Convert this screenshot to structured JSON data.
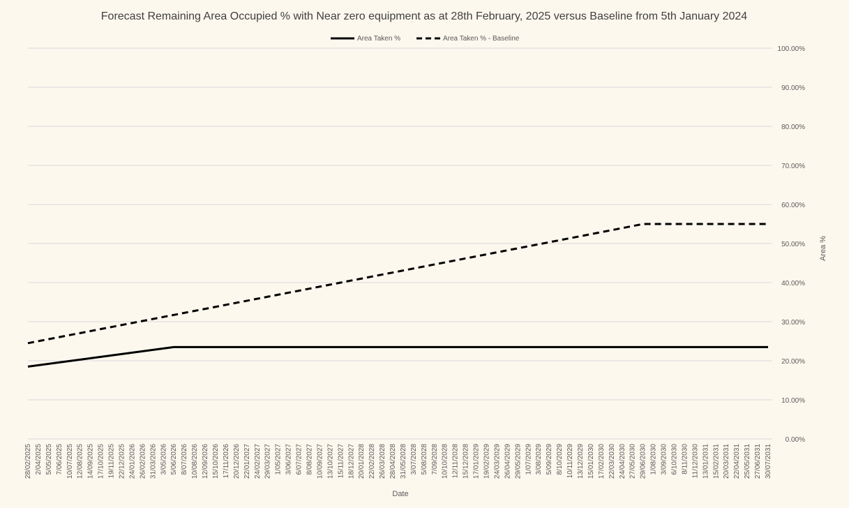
{
  "chart_data": {
    "type": "line",
    "title": "Forecast Remaining Area Occupied % with Near zero equipment as at 28th February, 2025 versus Baseline from 5th January 2024",
    "xlabel": "Date",
    "ylabel": "Area %",
    "ylim": [
      0,
      100
    ],
    "y_ticks": [
      "0.00%",
      "10.00%",
      "20.00%",
      "30.00%",
      "40.00%",
      "50.00%",
      "60.00%",
      "70.00%",
      "80.00%",
      "90.00%",
      "100.00%"
    ],
    "y_axis_position": "right",
    "grid": true,
    "legend_position": "top",
    "x": [
      "28/02/2025",
      "2/04/2025",
      "5/05/2025",
      "7/06/2025",
      "10/07/2025",
      "12/08/2025",
      "14/09/2025",
      "17/10/2025",
      "19/11/2025",
      "22/12/2025",
      "24/01/2026",
      "26/02/2026",
      "31/03/2026",
      "3/05/2026",
      "5/06/2026",
      "8/07/2026",
      "10/08/2026",
      "12/09/2026",
      "15/10/2026",
      "17/11/2026",
      "20/12/2026",
      "22/01/2027",
      "24/02/2027",
      "29/03/2027",
      "1/05/2027",
      "3/06/2027",
      "6/07/2027",
      "8/08/2027",
      "10/09/2027",
      "13/10/2027",
      "15/11/2027",
      "18/12/2027",
      "20/01/2028",
      "22/02/2028",
      "26/03/2028",
      "28/04/2028",
      "31/05/2028",
      "3/07/2028",
      "5/08/2028",
      "7/09/2028",
      "10/10/2028",
      "12/11/2028",
      "15/12/2028",
      "17/01/2029",
      "19/02/2029",
      "24/03/2029",
      "26/04/2029",
      "29/05/2029",
      "1/07/2029",
      "3/08/2029",
      "5/09/2029",
      "8/10/2029",
      "10/11/2029",
      "13/12/2029",
      "15/01/2030",
      "17/02/2030",
      "22/03/2030",
      "24/04/2030",
      "27/05/2030",
      "29/06/2030",
      "1/08/2030",
      "3/09/2030",
      "6/10/2030",
      "8/11/2030",
      "11/12/2030",
      "13/01/2031",
      "15/02/2031",
      "20/03/2031",
      "22/04/2031",
      "25/05/2031",
      "27/06/2031",
      "30/07/2031"
    ],
    "series": [
      {
        "name": "Area Taken %",
        "style": "solid",
        "color": "#000000",
        "values": [
          18.5,
          18.86,
          19.21,
          19.57,
          19.93,
          20.29,
          20.64,
          21.0,
          21.36,
          21.71,
          22.07,
          22.43,
          22.79,
          23.14,
          23.5,
          23.5,
          23.5,
          23.5,
          23.5,
          23.5,
          23.5,
          23.5,
          23.5,
          23.5,
          23.5,
          23.5,
          23.5,
          23.5,
          23.5,
          23.5,
          23.5,
          23.5,
          23.5,
          23.5,
          23.5,
          23.5,
          23.5,
          23.5,
          23.5,
          23.5,
          23.5,
          23.5,
          23.5,
          23.5,
          23.5,
          23.5,
          23.5,
          23.5,
          23.5,
          23.5,
          23.5,
          23.5,
          23.5,
          23.5,
          23.5,
          23.5,
          23.5,
          23.5,
          23.5,
          23.5,
          23.5,
          23.5,
          23.5,
          23.5,
          23.5,
          23.5,
          23.5,
          23.5,
          23.5,
          23.5,
          23.5,
          23.5
        ]
      },
      {
        "name": "Area Taken % - Baseline",
        "style": "dashed",
        "color": "#000000",
        "values": [
          24.5,
          25.02,
          25.53,
          26.05,
          26.57,
          27.08,
          27.6,
          28.12,
          28.63,
          29.15,
          29.67,
          30.18,
          30.7,
          31.22,
          31.73,
          32.25,
          32.77,
          33.28,
          33.8,
          34.32,
          34.83,
          35.35,
          35.87,
          36.38,
          36.9,
          37.42,
          37.93,
          38.45,
          38.97,
          39.48,
          40.0,
          40.52,
          41.03,
          41.55,
          42.07,
          42.58,
          43.1,
          43.62,
          44.13,
          44.65,
          45.17,
          45.68,
          46.2,
          46.72,
          47.23,
          47.75,
          48.27,
          48.78,
          49.3,
          49.82,
          50.33,
          50.85,
          51.37,
          51.88,
          52.4,
          52.92,
          53.43,
          53.95,
          54.47,
          55.0,
          55.0,
          55.0,
          55.0,
          55.0,
          55.0,
          55.0,
          55.0,
          55.0,
          55.0,
          55.0,
          55.0,
          55.0
        ]
      }
    ]
  }
}
